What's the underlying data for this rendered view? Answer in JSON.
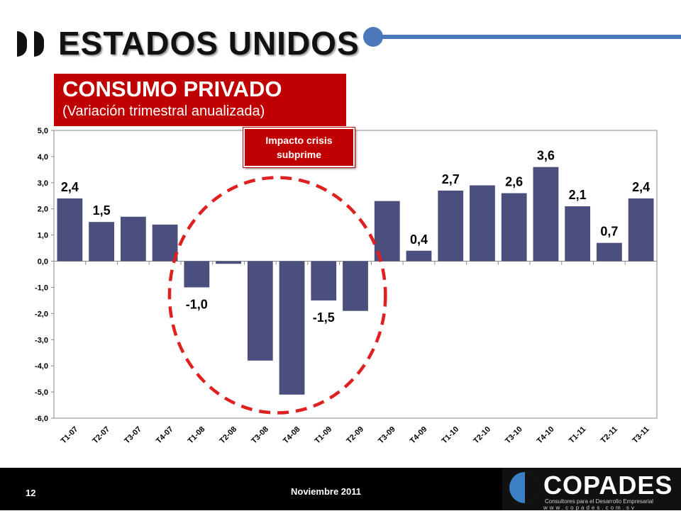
{
  "header": {
    "title": "ESTADOS UNIDOS",
    "accent_color": "#4a78b8"
  },
  "panel": {
    "title": "CONSUMO PRIVADO",
    "subtitle": "(Variación trimestral anualizada)",
    "color": "#c00000"
  },
  "callout": {
    "line1": "Impacto crisis",
    "line2": "subprime"
  },
  "chart_data": {
    "type": "bar",
    "categories": [
      "T1-07",
      "T2-07",
      "T3-07",
      "T4-07",
      "T1-08",
      "T2-08",
      "T3-08",
      "T4-08",
      "T1-09",
      "T2-09",
      "T3-09",
      "T4-09",
      "T1-10",
      "T2-10",
      "T3-10",
      "T4-10",
      "T1-11",
      "T2-11",
      "T3-11"
    ],
    "values": [
      2.4,
      1.5,
      1.7,
      1.4,
      -1.0,
      -0.1,
      -3.8,
      -5.1,
      -1.5,
      -1.9,
      2.3,
      0.4,
      2.7,
      2.9,
      2.6,
      3.6,
      2.1,
      0.7,
      2.4
    ],
    "data_labels": [
      "2,4",
      "1,5",
      "",
      "",
      "-1,0",
      "",
      "",
      "",
      "-1,5",
      "",
      "",
      "0,4",
      "2,7",
      "",
      "2,6",
      "3,6",
      "2,1",
      "0,7",
      "2,4"
    ],
    "ylim": [
      -6,
      5
    ],
    "yticks": [
      "5,0",
      "4,0",
      "3,0",
      "2,0",
      "1,0",
      "0,0",
      "-1,0",
      "-2,0",
      "-3,0",
      "-4,0",
      "-5,0",
      "-6,0"
    ],
    "bar_color": "#4a4f7e",
    "highlight_color": "#e02020",
    "grid": false
  },
  "footer": {
    "page": "12",
    "date": "Noviembre 2011"
  },
  "logo": {
    "name": "COPADES",
    "tagline": "Consultores para el Desarrollo Empresarial",
    "url": "www.copades.com.sv"
  }
}
